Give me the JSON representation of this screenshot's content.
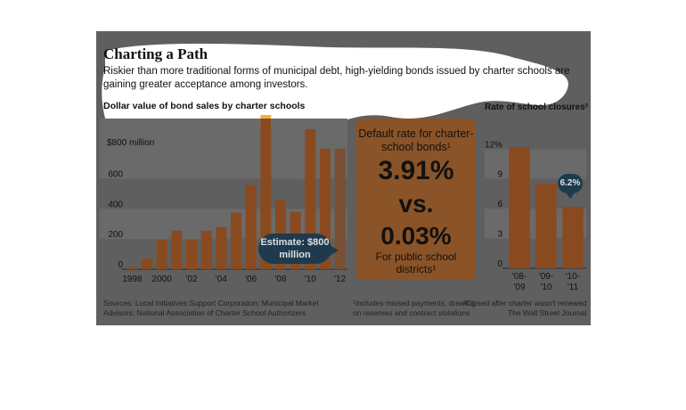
{
  "header": {
    "title": "Charting a Path",
    "subtitle": "Riskier than more traditional forms of municipal debt, high-yielding bonds issued by charter schools are gaining greater acceptance among investors."
  },
  "default_box": {
    "title": "Default rate for charter-school bonds¹",
    "charter_rate": "3.91%",
    "vs": "vs.",
    "public_rate": "0.03%",
    "public_label": "For public school districts¹"
  },
  "annotations": {
    "estimate": "Estimate: $800 million",
    "badge": "6.2%"
  },
  "footer": {
    "sources_line1": "Sources: Local Initiatives Support Corporation; Municipal Market",
    "sources_line2": "Advisors; National Association of Charter School Authorizers",
    "note1_line1": "¹Includes missed payments, drawing",
    "note1_line2": "on reserves and contract violations",
    "note2": "²Closed after charter wasn't renewed",
    "credit": "The Wall Street Journal"
  },
  "colors": {
    "bar": "#8a4a1f",
    "highlight_bar": "#f3b23a",
    "estimate_bar": "#7a4f32",
    "panel": "#5f5f5f",
    "annotation": "#1f3a4c"
  },
  "chart_data": [
    {
      "type": "bar",
      "title": "Dollar value of bond sales by charter schools",
      "unit_label": "$800 million",
      "x": [
        1998,
        1999,
        2000,
        2001,
        2002,
        2003,
        2004,
        2005,
        2006,
        2007,
        2008,
        2009,
        2010,
        2011,
        2012
      ],
      "x_tick_labels": [
        "1998",
        "2000",
        "'02",
        "'04",
        "'06",
        "'08",
        "'10",
        "'12"
      ],
      "x_tick_years": [
        1998,
        2000,
        2002,
        2004,
        2006,
        2008,
        2010,
        2012
      ],
      "values": [
        15,
        70,
        195,
        255,
        195,
        255,
        280,
        375,
        560,
        1000,
        460,
        380,
        930,
        800,
        800
      ],
      "highlight_year": 2007,
      "estimate_year": 2012,
      "y_ticks": [
        0,
        200,
        400,
        600
      ],
      "y_tick_labels": [
        "0",
        "200",
        "400",
        "600"
      ],
      "ylim": [
        0,
        1000
      ],
      "grid": "bands"
    },
    {
      "type": "bar",
      "title": "Rate of school closures²",
      "categories": [
        "'08-'09",
        "'09-'10",
        "'10-'11"
      ],
      "values": [
        12.2,
        8.5,
        6.2
      ],
      "y_ticks": [
        0,
        3,
        6,
        9,
        12
      ],
      "y_tick_labels": [
        "0",
        "3",
        "6",
        "9",
        "12%"
      ],
      "ylim": [
        0,
        14
      ],
      "grid": "bands"
    }
  ]
}
